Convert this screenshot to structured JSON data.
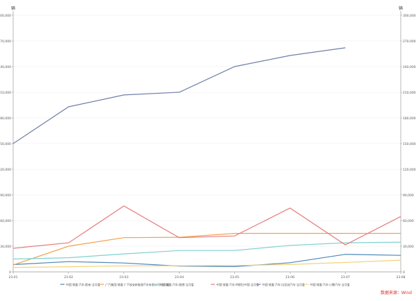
{
  "chart_data": {
    "type": "line",
    "title": "",
    "unit_left": "辆",
    "unit_right": "辆",
    "x": [
      "23-01",
      "23-02",
      "23-03",
      "23-04",
      "23-05",
      "23-06",
      "23-07",
      "23-08"
    ],
    "ylim": [
      0,
      300000
    ],
    "yticks": [
      0,
      30000,
      60000,
      90000,
      120000,
      150000,
      180000,
      210000,
      240000,
      270000,
      300000
    ],
    "ytick_labels": [
      "0",
      "30,000",
      "60,000",
      "90,000",
      "120,000",
      "150,000",
      "180,000",
      "210,000",
      "240,000",
      "270,000",
      "300,000"
    ],
    "grid": true,
    "legend_placement": "bottom",
    "series": [
      {
        "name": "中国:销量:汽车:蔚来:当月值",
        "color": "#4a86b8",
        "values": [
          8500,
          12000,
          10400,
          6700,
          6200,
          10700,
          20500,
          19300
        ]
      },
      {
        "name": "广汽集团:销量:广汽埃安新能源汽车有限公司:当月值",
        "color": "#f5a04a",
        "values": [
          8000,
          30000,
          40000,
          40500,
          45000,
          45000,
          45000,
          45000
        ]
      },
      {
        "name": "中国:销量:汽车:理想:当月值",
        "color": "#7fd0d0",
        "values": [
          15000,
          16500,
          21000,
          25000,
          25000,
          31000,
          34000,
          34800
        ]
      },
      {
        "name": "中国:销量:汽车:特斯拉中国:当月值",
        "color": "#e87a7a",
        "values": [
          27600,
          34000,
          77000,
          40000,
          42000,
          74600,
          31600,
          64700
        ]
      },
      {
        "name": "中国:销量:汽车:比亚迪汽车:当月值",
        "color": "#6f7ea8",
        "values": [
          150000,
          193000,
          206800,
          210000,
          240000,
          253000,
          262000,
          null
        ]
      },
      {
        "name": "中国:销量:汽车:小鹏汽车:当月值",
        "color": "#f3d27a",
        "values": [
          5200,
          6000,
          7000,
          7100,
          7500,
          8600,
          11000,
          13700
        ]
      }
    ],
    "source": "数据来源：Wind"
  }
}
